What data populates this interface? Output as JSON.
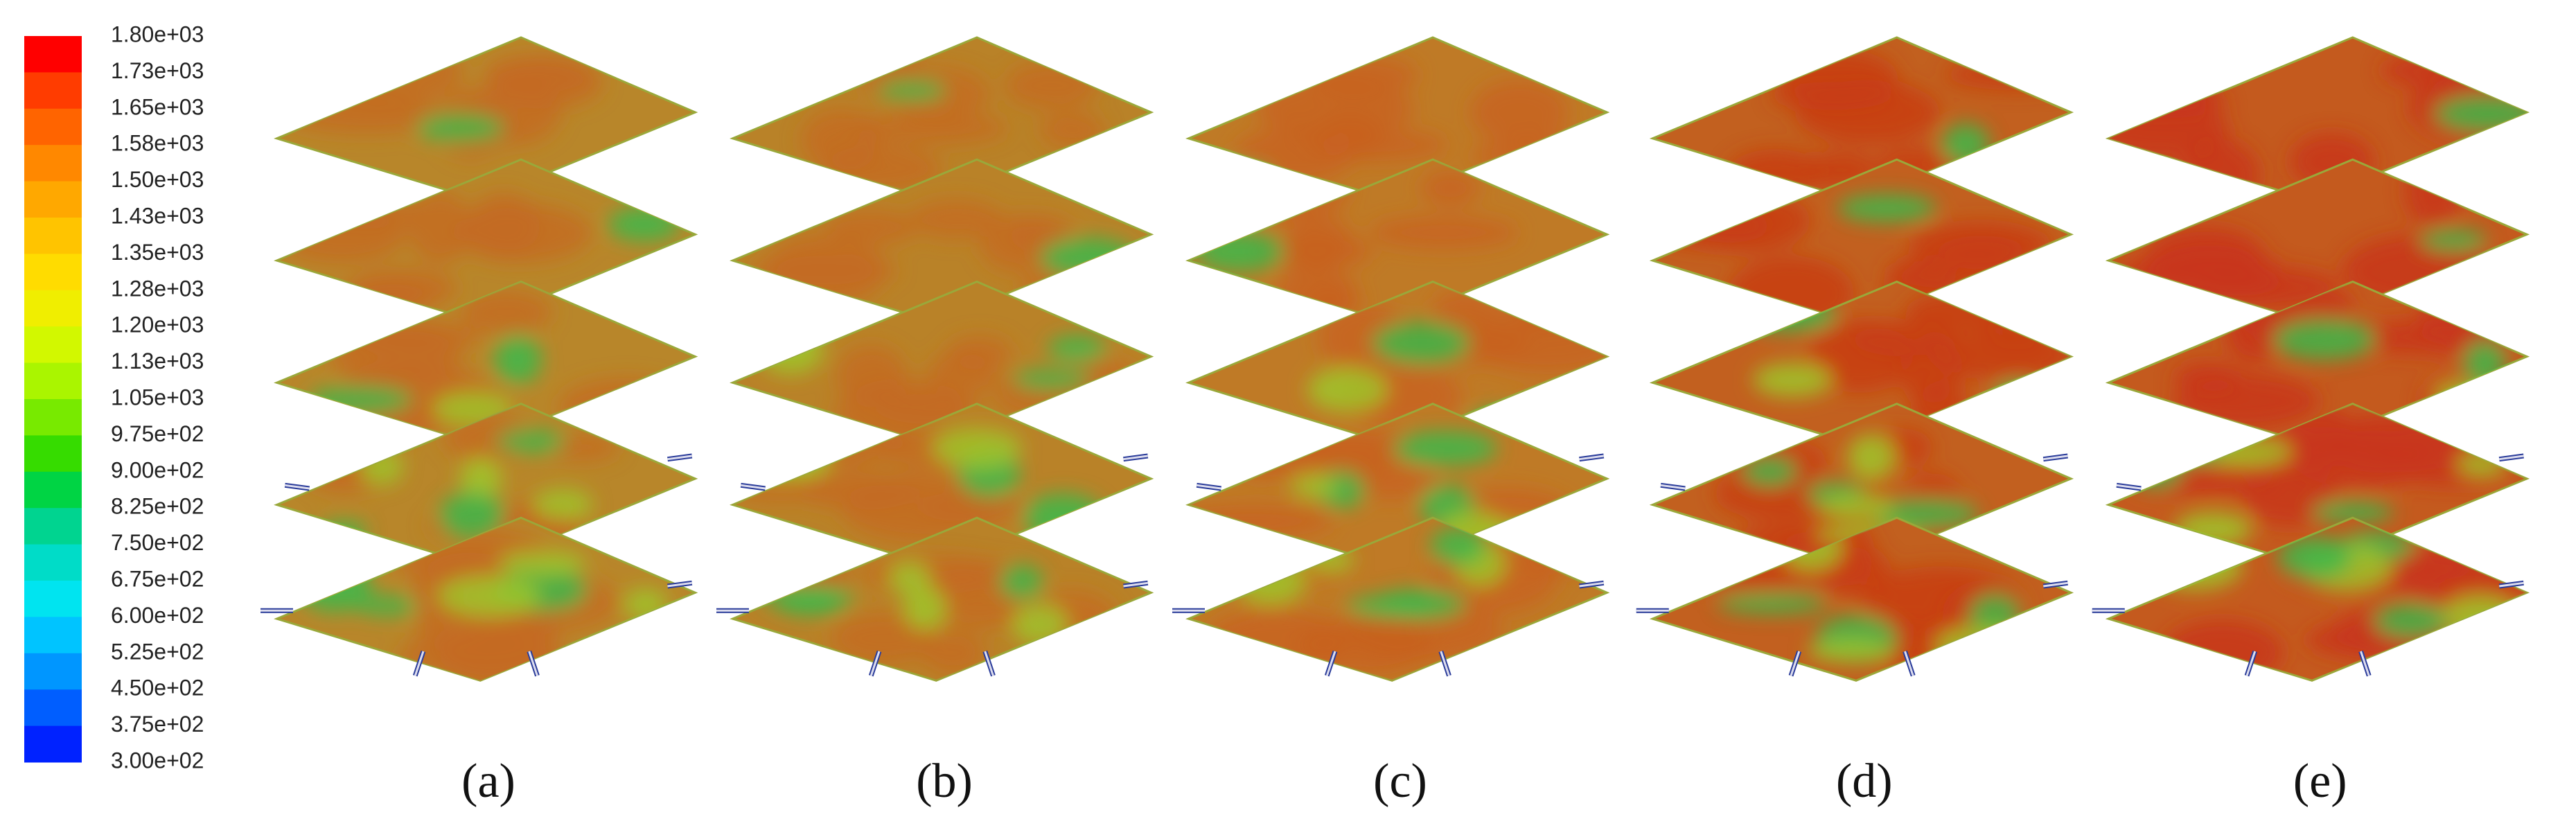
{
  "colorbar": {
    "labels": [
      "1.80e+03",
      "1.73e+03",
      "1.65e+03",
      "1.58e+03",
      "1.50e+03",
      "1.43e+03",
      "1.35e+03",
      "1.28e+03",
      "1.20e+03",
      "1.13e+03",
      "1.05e+03",
      "9.75e+02",
      "9.00e+02",
      "8.25e+02",
      "7.50e+02",
      "6.75e+02",
      "6.00e+02",
      "5.25e+02",
      "4.50e+02",
      "3.75e+02",
      "3.00e+02"
    ]
  },
  "panels": [
    {
      "label": "(a)"
    },
    {
      "label": "(b)"
    },
    {
      "label": "(c)"
    },
    {
      "label": "(d)"
    },
    {
      "label": "(e)"
    }
  ]
}
